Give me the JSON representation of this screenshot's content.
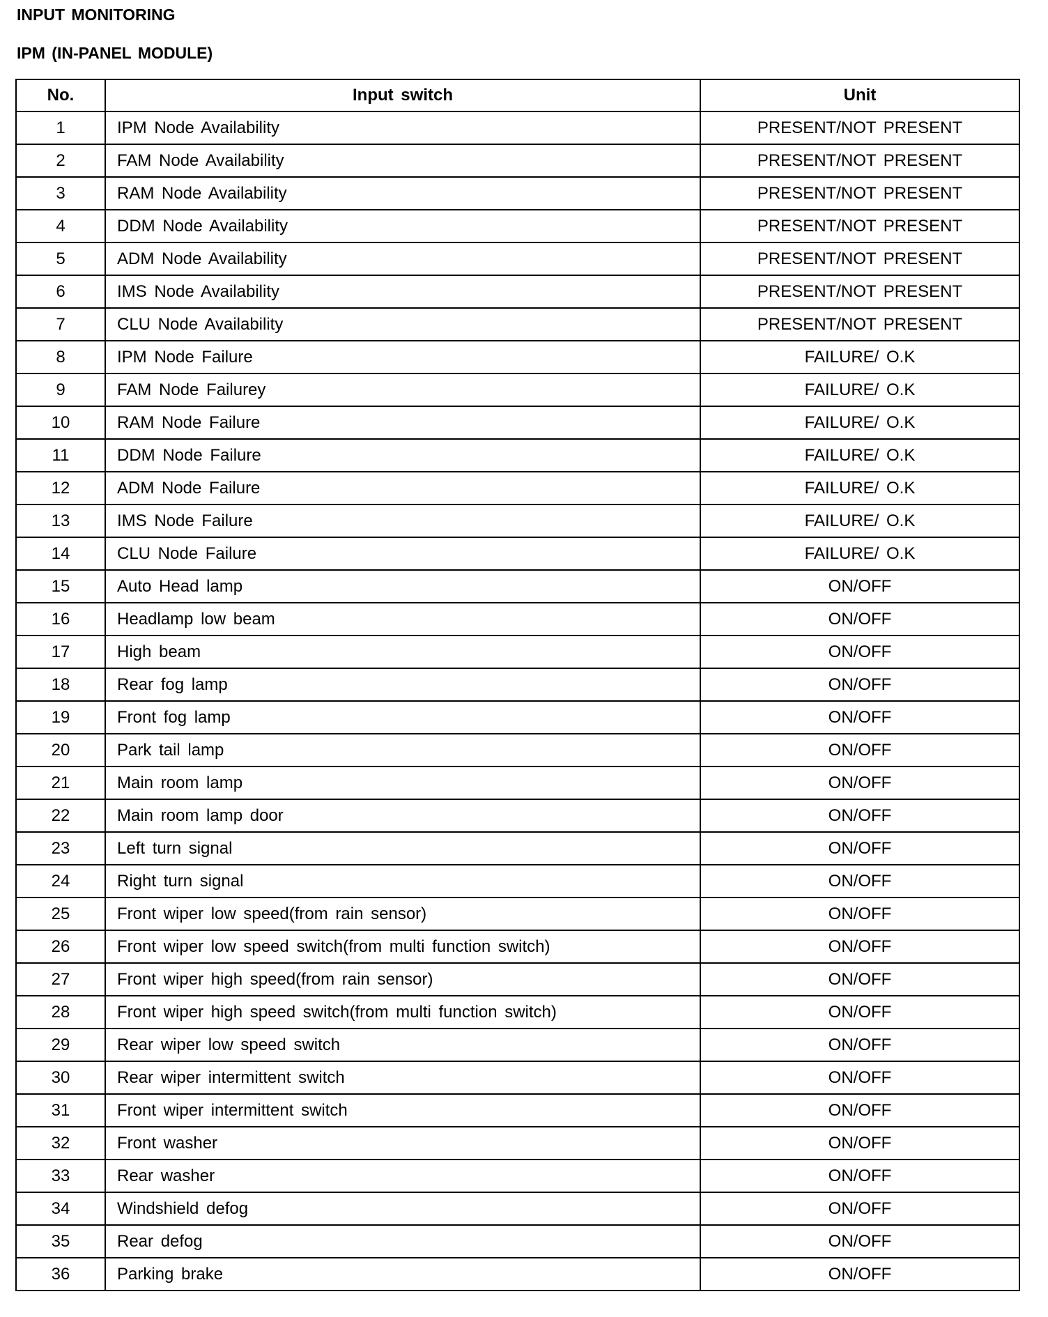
{
  "title": "INPUT MONITORING",
  "subtitle": "IPM (IN-PANEL MODULE)",
  "table": {
    "headers": [
      "No.",
      "Input switch",
      "Unit"
    ],
    "rows": [
      [
        "1",
        "IPM Node Availability",
        "PRESENT/NOT PRESENT"
      ],
      [
        "2",
        "FAM Node Availability",
        "PRESENT/NOT PRESENT"
      ],
      [
        "3",
        "RAM Node Availability",
        "PRESENT/NOT PRESENT"
      ],
      [
        "4",
        "DDM Node Availability",
        "PRESENT/NOT PRESENT"
      ],
      [
        "5",
        "ADM Node Availability",
        "PRESENT/NOT PRESENT"
      ],
      [
        "6",
        "IMS Node Availability",
        "PRESENT/NOT PRESENT"
      ],
      [
        "7",
        "CLU Node Availability",
        "PRESENT/NOT PRESENT"
      ],
      [
        "8",
        "IPM Node Failure",
        "FAILURE/ O.K"
      ],
      [
        "9",
        "FAM Node Failurey",
        "FAILURE/ O.K"
      ],
      [
        "10",
        "RAM Node Failure",
        "FAILURE/ O.K"
      ],
      [
        "11",
        "DDM Node Failure",
        "FAILURE/ O.K"
      ],
      [
        "12",
        "ADM Node Failure",
        "FAILURE/ O.K"
      ],
      [
        "13",
        "IMS Node Failure",
        "FAILURE/ O.K"
      ],
      [
        "14",
        "CLU Node Failure",
        "FAILURE/ O.K"
      ],
      [
        "15",
        "Auto Head lamp",
        "ON/OFF"
      ],
      [
        "16",
        "Headlamp low beam",
        "ON/OFF"
      ],
      [
        "17",
        "High beam",
        "ON/OFF"
      ],
      [
        "18",
        "Rear fog lamp",
        "ON/OFF"
      ],
      [
        "19",
        "Front fog lamp",
        "ON/OFF"
      ],
      [
        "20",
        "Park tail lamp",
        "ON/OFF"
      ],
      [
        "21",
        "Main room lamp",
        "ON/OFF"
      ],
      [
        "22",
        "Main room lamp door",
        "ON/OFF"
      ],
      [
        "23",
        "Left turn signal",
        "ON/OFF"
      ],
      [
        "24",
        "Right turn signal",
        "ON/OFF"
      ],
      [
        "25",
        "Front wiper low speed(from rain sensor)",
        "ON/OFF"
      ],
      [
        "26",
        "Front wiper low speed switch(from multi function switch)",
        "ON/OFF"
      ],
      [
        "27",
        "Front wiper high speed(from rain sensor)",
        "ON/OFF"
      ],
      [
        "28",
        "Front wiper high speed switch(from multi function switch)",
        "ON/OFF"
      ],
      [
        "29",
        "Rear wiper low speed switch",
        "ON/OFF"
      ],
      [
        "30",
        "Rear wiper intermittent switch",
        "ON/OFF"
      ],
      [
        "31",
        "Front wiper intermittent switch",
        "ON/OFF"
      ],
      [
        "32",
        "Front washer",
        "ON/OFF"
      ],
      [
        "33",
        "Rear washer",
        "ON/OFF"
      ],
      [
        "34",
        "Windshield defog",
        "ON/OFF"
      ],
      [
        "35",
        "Rear defog",
        "ON/OFF"
      ],
      [
        "36",
        "Parking brake",
        "ON/OFF"
      ]
    ]
  }
}
